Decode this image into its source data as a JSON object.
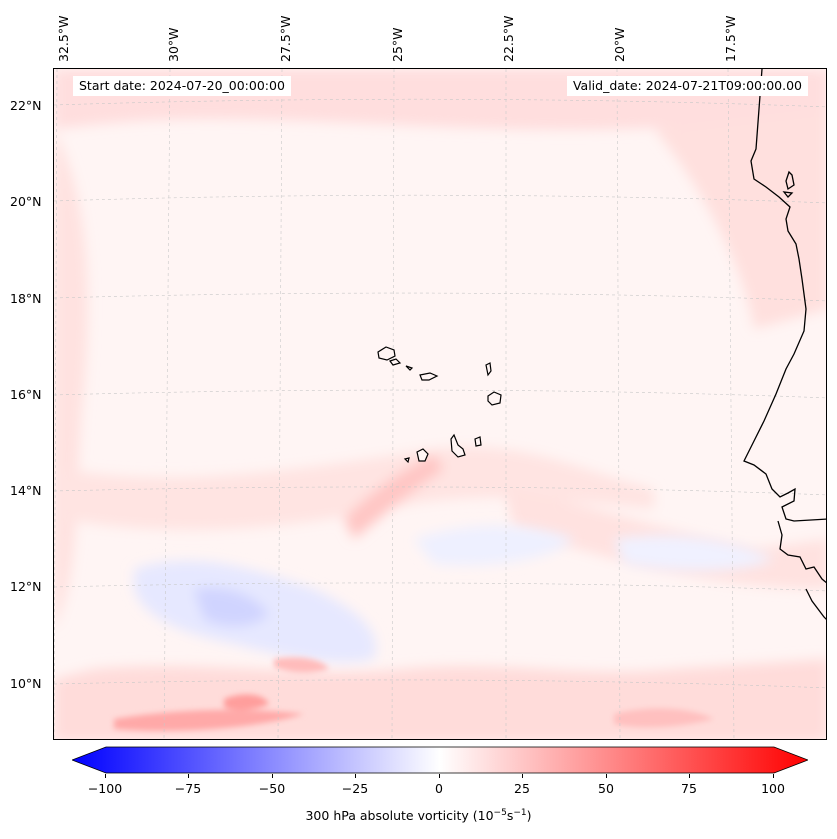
{
  "map": {
    "start_date_label": "Start date: 2024-07-20_00:00:00",
    "valid_date_label": "Valid_date: 2024-07-21T09:00:00.00",
    "longitude_labels": [
      "32.5°W",
      "30°W",
      "27.5°W",
      "25°W",
      "22.5°W",
      "20°W",
      "17.5°W"
    ],
    "latitude_labels": [
      "22°N",
      "20°N",
      "18°N",
      "16°N",
      "14°N",
      "12°N",
      "10°N"
    ],
    "field": "300 hPa absolute vorticity",
    "colors": {
      "max_positive": "#ff0000",
      "max_negative": "#0000ff",
      "neutral": "#ffffff",
      "coastline": "#000000"
    }
  },
  "colorbar": {
    "label": "300 hPa absolute vorticity (10",
    "label_exp1": "−5",
    "label_mid": "s",
    "label_exp2": "−1",
    "label_end": ")",
    "ticks": [
      "−100",
      "−75",
      "−50",
      "−25",
      "0",
      "25",
      "50",
      "75",
      "100"
    ],
    "range": [
      -100,
      100
    ],
    "extend": "both"
  }
}
